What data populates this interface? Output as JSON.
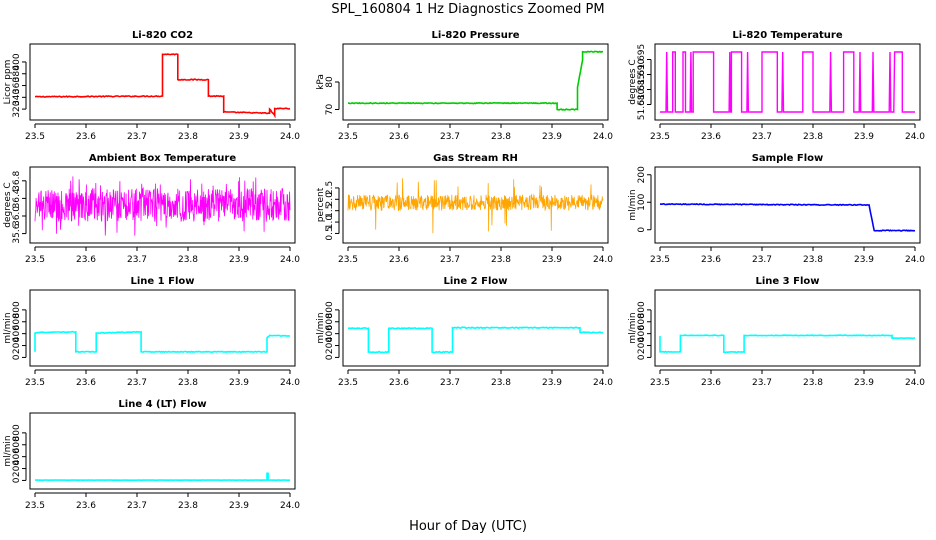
{
  "figure": {
    "title": "SPL_160804  1 Hz Diagnostics Zoomed PM",
    "xlabel": "Hour of Day (UTC)"
  },
  "colors": {
    "red": "#ff0000",
    "green": "#00cc00",
    "magenta": "#ff00ff",
    "orange": "#ffa500",
    "blue": "#0000ff",
    "cyan": "#00ffff"
  },
  "chart_data": [
    {
      "type": "line",
      "title": "Li-820 CO2",
      "ylabel": "Licor ppm",
      "color": "red",
      "xlim": [
        23.5,
        24.0
      ],
      "xticks": [
        23.5,
        23.6,
        23.7,
        23.8,
        23.9,
        24.0
      ],
      "ylim": [
        310,
        422
      ],
      "yticks": [
        320,
        340,
        360,
        380,
        400
      ],
      "noise": 0.8,
      "x": [
        23.5,
        23.75,
        23.75,
        23.78,
        23.78,
        23.84,
        23.84,
        23.87,
        23.87,
        23.96,
        23.96,
        23.97,
        23.97,
        24.0
      ],
      "y": [
        341,
        342,
        413,
        413,
        370,
        370,
        342,
        342,
        315,
        313,
        320,
        309,
        321,
        321
      ]
    },
    {
      "type": "line",
      "title": "Li-820 Pressure",
      "ylabel": "kPa",
      "color": "green",
      "xlim": [
        23.5,
        24.0
      ],
      "xticks": [
        23.5,
        23.6,
        23.7,
        23.8,
        23.9,
        24.0
      ],
      "ylim": [
        68,
        92
      ],
      "yticks": [
        70,
        80
      ],
      "noise": 0.15,
      "x": [
        23.5,
        23.91,
        23.91,
        23.95,
        23.95,
        23.96,
        23.96,
        24.0
      ],
      "y": [
        72.3,
        72.3,
        70,
        70,
        78,
        88,
        91,
        91
      ]
    },
    {
      "type": "flicker",
      "title": "Li-820 Temperature",
      "ylabel": "degrees C",
      "color": "magenta",
      "xlim": [
        23.5,
        24.0
      ],
      "xticks": [
        23.5,
        23.6,
        23.7,
        23.8,
        23.9,
        24.0
      ],
      "ylim": [
        51.6765,
        51.6985
      ],
      "yticks": [
        51.68,
        51.685,
        51.69,
        51.695
      ],
      "levels": [
        51.6775,
        51.6975
      ],
      "segments": [
        [
          23.5,
          23.525,
          0
        ],
        [
          23.525,
          23.53,
          1
        ],
        [
          23.53,
          23.545,
          0
        ],
        [
          23.545,
          23.55,
          1
        ],
        [
          23.55,
          23.565,
          0
        ],
        [
          23.565,
          23.605,
          1
        ],
        [
          23.605,
          23.64,
          0
        ],
        [
          23.64,
          23.66,
          1
        ],
        [
          23.66,
          23.7,
          0
        ],
        [
          23.7,
          23.73,
          1
        ],
        [
          23.73,
          23.78,
          0
        ],
        [
          23.78,
          23.8,
          1
        ],
        [
          23.8,
          23.86,
          0
        ],
        [
          23.86,
          23.88,
          1
        ],
        [
          23.88,
          23.96,
          0
        ],
        [
          23.96,
          23.975,
          1
        ],
        [
          23.975,
          24.0,
          0
        ]
      ]
    },
    {
      "type": "noise",
      "title": "Ambient Box Temperature",
      "ylabel": "degrees C",
      "color": "magenta",
      "xlim": [
        23.5,
        24.0
      ],
      "xticks": [
        23.5,
        23.6,
        23.7,
        23.8,
        23.9,
        24.0
      ],
      "ylim": [
        35.5,
        37.0
      ],
      "yticks": [
        35.6,
        36.0,
        36.4,
        36.8
      ],
      "base": 36.25,
      "amp": 0.38,
      "spike_min": 35.55,
      "spike_max": 36.92
    },
    {
      "type": "noise",
      "title": "Gas Stream RH",
      "ylabel": "percent",
      "color": "orange",
      "xlim": [
        23.5,
        24.0
      ],
      "xticks": [
        23.5,
        23.6,
        23.7,
        23.8,
        23.9,
        24.0
      ],
      "ylim": [
        0.3,
        3.2
      ],
      "yticks": [
        0.5,
        1.0,
        1.5,
        2.0,
        2.5
      ],
      "base": 1.85,
      "amp": 0.35,
      "spike_min": 0.5,
      "spike_max": 2.95
    },
    {
      "type": "line",
      "title": "Sample Flow",
      "ylabel": "ml/min",
      "color": "blue",
      "xlim": [
        23.5,
        24.0
      ],
      "xticks": [
        23.5,
        23.6,
        23.7,
        23.8,
        23.9,
        24.0
      ],
      "ylim": [
        -30,
        210
      ],
      "yticks": [
        0,
        100,
        200
      ],
      "noise": 1.5,
      "x": [
        23.5,
        23.91,
        23.91,
        23.92,
        24.0
      ],
      "y": [
        93,
        90,
        90,
        -3,
        -3
      ]
    },
    {
      "type": "line",
      "title": "Line 1 Flow",
      "ylabel": "ml/min",
      "color": "cyan",
      "xlim": [
        23.5,
        24.0
      ],
      "xticks": [
        23.5,
        23.6,
        23.7,
        23.8,
        23.9,
        24.0
      ],
      "ylim": [
        -60,
        1050
      ],
      "yticks": [
        0,
        200,
        400,
        600,
        800
      ],
      "noise": 6,
      "x": [
        23.5,
        23.5,
        23.508,
        23.58,
        23.58,
        23.62,
        23.62,
        23.708,
        23.708,
        23.955,
        23.955,
        23.96,
        24.0
      ],
      "y": [
        95,
        410,
        420,
        430,
        95,
        95,
        410,
        430,
        95,
        95,
        330,
        370,
        360
      ]
    },
    {
      "type": "line",
      "title": "Line 2 Flow",
      "ylabel": "ml/min",
      "color": "cyan",
      "xlim": [
        23.5,
        24.0
      ],
      "xticks": [
        23.5,
        23.6,
        23.7,
        23.8,
        23.9,
        24.0
      ],
      "ylim": [
        -60,
        1050
      ],
      "yticks": [
        0,
        200,
        400,
        600,
        800
      ],
      "noise": 8,
      "x": [
        23.5,
        23.54,
        23.54,
        23.58,
        23.58,
        23.665,
        23.665,
        23.705,
        23.705,
        23.955,
        23.955,
        24.0
      ],
      "y": [
        490,
        490,
        90,
        90,
        490,
        490,
        90,
        90,
        500,
        500,
        420,
        420
      ]
    },
    {
      "type": "line",
      "title": "Line 3 Flow",
      "ylabel": "ml/min",
      "color": "cyan",
      "xlim": [
        23.5,
        24.0
      ],
      "xticks": [
        23.5,
        23.6,
        23.7,
        23.8,
        23.9,
        24.0
      ],
      "ylim": [
        -60,
        1050
      ],
      "yticks": [
        0,
        200,
        400,
        600,
        800
      ],
      "noise": 5,
      "x": [
        23.5,
        23.5,
        23.505,
        23.54,
        23.54,
        23.625,
        23.625,
        23.665,
        23.665,
        23.955,
        23.955,
        24.0
      ],
      "y": [
        360,
        95,
        95,
        95,
        370,
        370,
        90,
        90,
        370,
        370,
        325,
        325
      ]
    },
    {
      "type": "line",
      "title": "Line 4 (LT) Flow",
      "ylabel": "ml/min",
      "color": "cyan",
      "xlim": [
        23.5,
        24.0
      ],
      "xticks": [
        23.5,
        23.6,
        23.7,
        23.8,
        23.9,
        24.0
      ],
      "ylim": [
        -60,
        1050
      ],
      "yticks": [
        0,
        200,
        400,
        600,
        800
      ],
      "noise": 1,
      "x": [
        23.5,
        23.955,
        23.955,
        23.957,
        23.957,
        24.0
      ],
      "y": [
        5,
        5,
        120,
        120,
        5,
        5
      ]
    }
  ]
}
